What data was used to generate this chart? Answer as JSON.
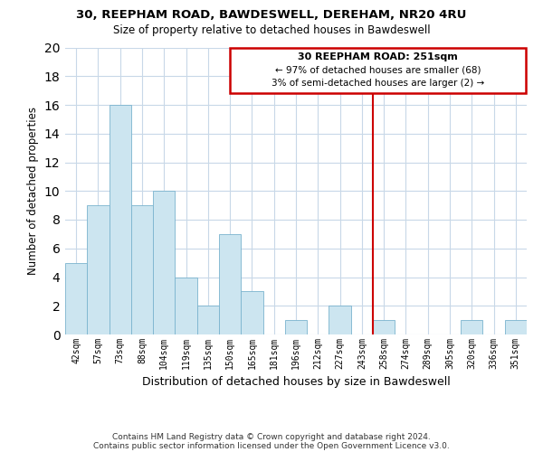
{
  "title1": "30, REEPHAM ROAD, BAWDESWELL, DEREHAM, NR20 4RU",
  "title2": "Size of property relative to detached houses in Bawdeswell",
  "xlabel": "Distribution of detached houses by size in Bawdeswell",
  "ylabel": "Number of detached properties",
  "bin_labels": [
    "42sqm",
    "57sqm",
    "73sqm",
    "88sqm",
    "104sqm",
    "119sqm",
    "135sqm",
    "150sqm",
    "165sqm",
    "181sqm",
    "196sqm",
    "212sqm",
    "227sqm",
    "243sqm",
    "258sqm",
    "274sqm",
    "289sqm",
    "305sqm",
    "320sqm",
    "336sqm",
    "351sqm"
  ],
  "bar_heights": [
    5,
    9,
    16,
    9,
    10,
    4,
    2,
    7,
    3,
    0,
    1,
    0,
    2,
    0,
    1,
    0,
    0,
    0,
    1,
    0,
    1
  ],
  "bar_color": "#cce5f0",
  "bar_edge_color": "#7ab4ce",
  "vline_color": "#cc0000",
  "annotation_title": "30 REEPHAM ROAD: 251sqm",
  "annotation_line1": "← 97% of detached houses are smaller (68)",
  "annotation_line2": "3% of semi-detached houses are larger (2) →",
  "annotation_box_color": "#ffffff",
  "annotation_box_edge": "#cc0000",
  "ylim": [
    0,
    20
  ],
  "yticks": [
    0,
    2,
    4,
    6,
    8,
    10,
    12,
    14,
    16,
    18,
    20
  ],
  "footer1": "Contains HM Land Registry data © Crown copyright and database right 2024.",
  "footer2": "Contains public sector information licensed under the Open Government Licence v3.0.",
  "background_color": "#ffffff",
  "grid_color": "#c8d8e8"
}
